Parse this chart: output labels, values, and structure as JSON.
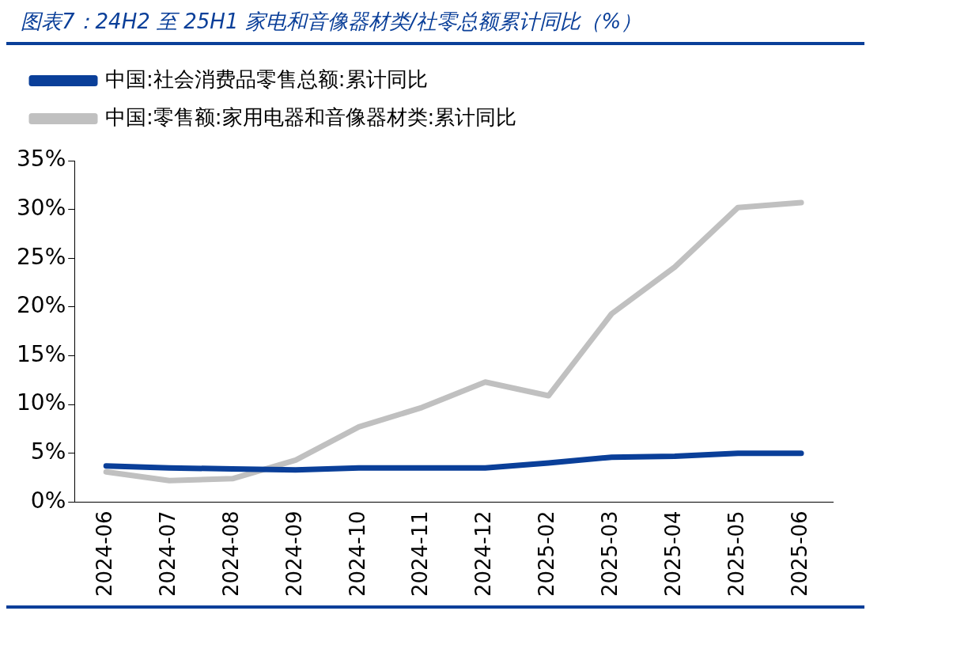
{
  "chart_data": {
    "type": "line",
    "title": "图表7：24H2 至 25H1 家电和音像器材类/社零总额累计同比（%）",
    "categories": [
      "2024-06",
      "2024-07",
      "2024-08",
      "2024-09",
      "2024-10",
      "2024-11",
      "2024-12",
      "2025-02",
      "2025-03",
      "2025-04",
      "2025-05",
      "2025-06"
    ],
    "series": [
      {
        "name": "中国:社会消费品零售总额:累计同比",
        "color": "#0a3f99",
        "values": [
          3.7,
          3.5,
          3.4,
          3.3,
          3.5,
          3.5,
          3.5,
          4.0,
          4.6,
          4.7,
          5.0,
          5.0
        ]
      },
      {
        "name": "中国:零售额:家用电器和音像器材类:累计同比",
        "color": "#c0c0c0",
        "values": [
          3.1,
          2.2,
          2.4,
          4.3,
          7.7,
          9.7,
          12.3,
          10.9,
          19.3,
          24.1,
          30.2,
          30.7
        ]
      }
    ],
    "ylim": [
      0,
      35
    ],
    "yticks": [
      {
        "value": 0,
        "label": "0%"
      },
      {
        "value": 5,
        "label": "5%"
      },
      {
        "value": 10,
        "label": "10%"
      },
      {
        "value": 15,
        "label": "15%"
      },
      {
        "value": 20,
        "label": "20%"
      },
      {
        "value": 25,
        "label": "25%"
      },
      {
        "value": 30,
        "label": "30%"
      },
      {
        "value": 35,
        "label": "35%"
      }
    ],
    "grid": false,
    "legend": "top",
    "marker": "none",
    "line_style": "solid"
  }
}
